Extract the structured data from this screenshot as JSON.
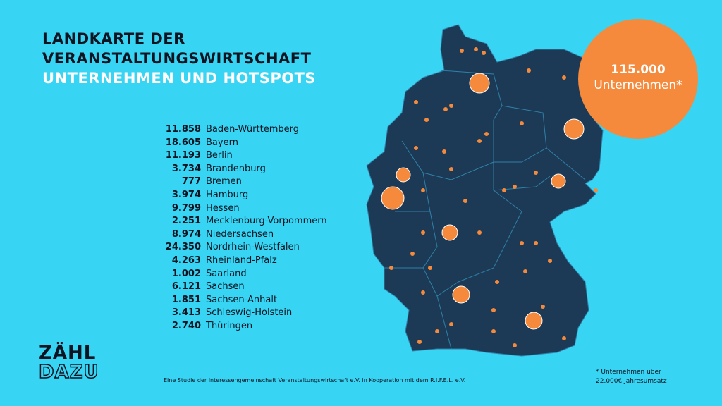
{
  "header": {
    "title_lines": [
      "LANDKARTE DER",
      "VERANSTALTUNGSWIRTSCHAFT"
    ],
    "subtitle": "UNTERNEHMEN UND HOTSPOTS"
  },
  "list": {
    "rows": [
      [
        "11.858",
        "Baden-Württemberg"
      ],
      [
        "18.605",
        "Bayern"
      ],
      [
        "11.193",
        "Berlin"
      ],
      [
        "3.734",
        "Brandenburg"
      ],
      [
        "777",
        "Bremen"
      ],
      [
        "3.974",
        "Hamburg"
      ],
      [
        "9.799",
        "Hessen"
      ],
      [
        "2.251",
        "Mecklenburg-Vorpommern"
      ],
      [
        "8.974",
        "Niedersachsen"
      ],
      [
        "24.350",
        "Nordrhein-Westfalen"
      ],
      [
        "4.263",
        "Rheinland-Pfalz"
      ],
      [
        "1.002",
        "Saarland"
      ],
      [
        "6.121",
        "Sachsen"
      ],
      [
        "1.851",
        "Sachsen-Anhalt"
      ],
      [
        "3.413",
        "Schleswig-Holstein"
      ],
      [
        "2.740",
        "Thüringen"
      ]
    ]
  },
  "badge": {
    "value": "115.000",
    "label": "Unternehmen*"
  },
  "logo": {
    "line1": "ZÄHL",
    "line2": "DAZU"
  },
  "footer": {
    "study": "Eine Studie der Interessengemeinschaft Veranstaltungswirtschaft e.V. in Kooperation mit dem R.I.F.E.L. e.V.",
    "note_lines": [
      "* Unternehmen über",
      "22.000€ Jahresumsatz"
    ]
  }
}
